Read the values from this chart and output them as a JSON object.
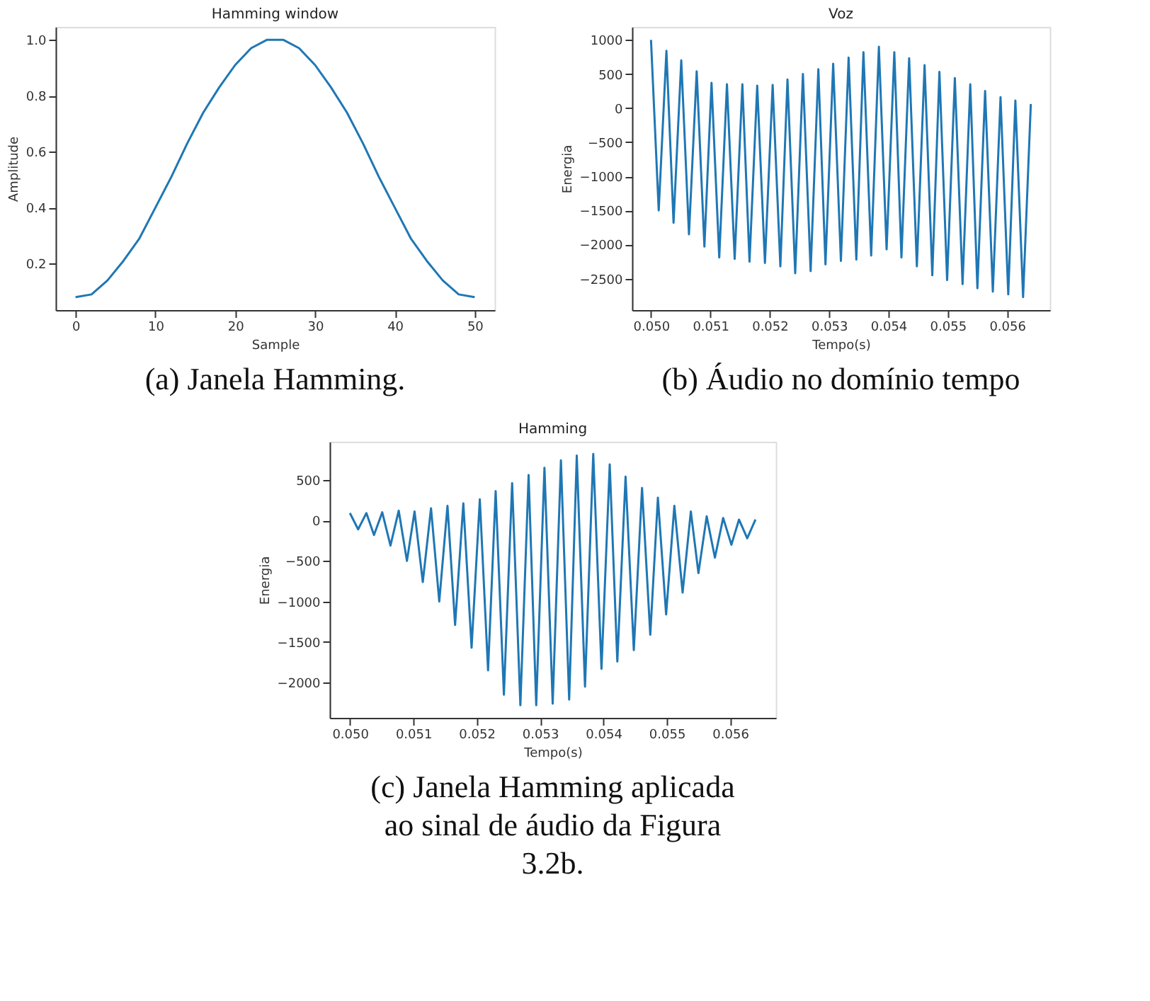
{
  "chart_data": [
    {
      "type": "line",
      "title": "Hamming window",
      "xlabel": "Sample",
      "ylabel": "Amplitude",
      "annotations": [
        "(a) Janela Hamming."
      ],
      "xlim": [
        -2.5,
        52.5
      ],
      "ylim": [
        0.034,
        1.046
      ],
      "xticks": [
        0,
        10,
        20,
        30,
        40,
        50
      ],
      "yticks": [
        0.2,
        0.4,
        0.6,
        0.8,
        {
          "value": 1,
          "label": "1.0"
        }
      ],
      "series": [
        {
          "color": "#1f77b4",
          "x": [
            0,
            2,
            4,
            6,
            8,
            10,
            12,
            14,
            16,
            18,
            20,
            22,
            24,
            26,
            28,
            30,
            32,
            34,
            36,
            38,
            40,
            42,
            44,
            46,
            48,
            50
          ],
          "values": [
            0.08,
            0.09,
            0.14,
            0.21,
            0.29,
            0.4,
            0.51,
            0.63,
            0.74,
            0.83,
            0.91,
            0.97,
            1.0,
            1.0,
            0.97,
            0.91,
            0.83,
            0.74,
            0.63,
            0.51,
            0.4,
            0.29,
            0.21,
            0.14,
            0.09,
            0.08
          ]
        }
      ]
    },
    {
      "type": "line",
      "title": "Voz",
      "xlabel": "Tempo(s)",
      "ylabel": "Energia",
      "annotations": [
        "(b) Áudio no domínio tempo"
      ],
      "xlim": [
        0.04968,
        0.05672
      ],
      "ylim": [
        -2960,
        1190
      ],
      "xticks": [
        {
          "value": 0.05,
          "label": "0.050"
        },
        0.051,
        0.052,
        0.053,
        0.054,
        0.055,
        0.056
      ],
      "yticks": [
        1000,
        500,
        0,
        {
          "value": -500,
          "label": "−500"
        },
        {
          "value": -1000,
          "label": "−1000"
        },
        {
          "value": -1500,
          "label": "−1500"
        },
        {
          "value": -2000,
          "label": "−2000"
        },
        {
          "value": -2500,
          "label": "−2500"
        }
      ],
      "series": [
        {
          "color": "#1f77b4",
          "x": [
            0.05,
            0.05013,
            0.05026,
            0.05038,
            0.05051,
            0.05064,
            0.05077,
            0.0509,
            0.05102,
            0.05115,
            0.05128,
            0.05141,
            0.05154,
            0.05166,
            0.05179,
            0.05192,
            0.05205,
            0.05218,
            0.0523,
            0.05243,
            0.05256,
            0.05269,
            0.05282,
            0.05294,
            0.05307,
            0.0532,
            0.05333,
            0.05346,
            0.05358,
            0.05371,
            0.05384,
            0.05397,
            0.0541,
            0.05422,
            0.05435,
            0.05448,
            0.05461,
            0.05474,
            0.05486,
            0.05499,
            0.05512,
            0.05525,
            0.05538,
            0.0555,
            0.05563,
            0.05576,
            0.05589,
            0.05602,
            0.05614,
            0.05627,
            0.0564
          ],
          "values": [
            1000,
            -1500,
            840,
            -1680,
            700,
            -1850,
            540,
            -2030,
            370,
            -2190,
            350,
            -2210,
            350,
            -2250,
            330,
            -2270,
            340,
            -2320,
            420,
            -2420,
            500,
            -2390,
            570,
            -2290,
            650,
            -2240,
            740,
            -2220,
            820,
            -2160,
            900,
            -2070,
            820,
            -2190,
            730,
            -2320,
            630,
            -2450,
            530,
            -2520,
            440,
            -2580,
            350,
            -2640,
            250,
            -2690,
            160,
            -2730,
            110,
            -2770,
            60
          ]
        }
      ]
    },
    {
      "type": "line",
      "title": "Hamming",
      "xlabel": "Tempo(s)",
      "ylabel": "Energia",
      "annotations": [
        "(c) Janela Hamming aplicada ao sinal de áudio da Figura 3.2b."
      ],
      "xlim": [
        0.04968,
        0.05672
      ],
      "ylim": [
        -2435,
        970
      ],
      "xticks": [
        {
          "value": 0.05,
          "label": "0.050"
        },
        0.051,
        0.052,
        0.053,
        0.054,
        0.055,
        0.056
      ],
      "yticks": [
        500,
        0,
        {
          "value": -500,
          "label": "−500"
        },
        {
          "value": -1000,
          "label": "−1000"
        },
        {
          "value": -1500,
          "label": "−1500"
        },
        {
          "value": -2000,
          "label": "−2000"
        }
      ],
      "series": [
        {
          "color": "#1f77b4",
          "x": [
            0.05,
            0.05013,
            0.05026,
            0.05038,
            0.05051,
            0.05064,
            0.05077,
            0.0509,
            0.05102,
            0.05115,
            0.05128,
            0.05141,
            0.05154,
            0.05166,
            0.05179,
            0.05192,
            0.05205,
            0.05218,
            0.0523,
            0.05243,
            0.05256,
            0.05269,
            0.05282,
            0.05294,
            0.05307,
            0.0532,
            0.05333,
            0.05346,
            0.05358,
            0.05371,
            0.05384,
            0.05397,
            0.0541,
            0.05422,
            0.05435,
            0.05448,
            0.05461,
            0.05474,
            0.05486,
            0.05499,
            0.05512,
            0.05525,
            0.05538,
            0.0555,
            0.05563,
            0.05576,
            0.05589,
            0.05602,
            0.05614,
            0.05627,
            0.0564
          ],
          "values": [
            90,
            -110,
            90,
            -180,
            100,
            -310,
            120,
            -500,
            110,
            -760,
            150,
            -1000,
            180,
            -1290,
            210,
            -1570,
            260,
            -1850,
            360,
            -2150,
            460,
            -2280,
            560,
            -2280,
            650,
            -2260,
            740,
            -2210,
            800,
            -2050,
            820,
            -1830,
            690,
            -1740,
            540,
            -1600,
            400,
            -1410,
            280,
            -1160,
            180,
            -890,
            110,
            -650,
            50,
            -460,
            30,
            -300,
            10,
            -220,
            10
          ]
        }
      ]
    }
  ]
}
